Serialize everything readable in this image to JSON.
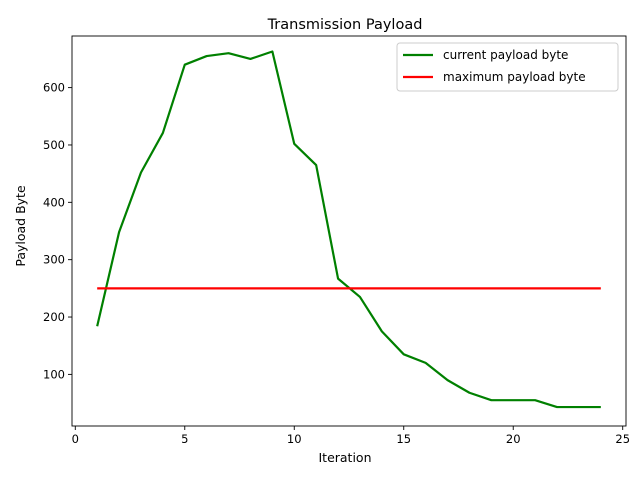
{
  "chart_data": {
    "type": "line",
    "title": "Transmission Payload",
    "xlabel": "Iteration",
    "ylabel": "Payload Byte",
    "xlim": [
      -0.15,
      25.15
    ],
    "ylim": [
      10,
      690
    ],
    "xticks": [
      0,
      5,
      10,
      15,
      20,
      25
    ],
    "yticks": [
      100,
      200,
      300,
      400,
      500,
      600
    ],
    "grid": false,
    "legend_position": "top-right",
    "series": [
      {
        "name": "current payload byte",
        "color": "#008000",
        "x": [
          1,
          2,
          3,
          4,
          5,
          6,
          7,
          8,
          9,
          10,
          11,
          12,
          13,
          14,
          15,
          16,
          17,
          18,
          19,
          20,
          21,
          22,
          23,
          24
        ],
        "y": [
          184,
          348,
          452,
          521,
          640,
          655,
          660,
          650,
          663,
          502,
          465,
          267,
          235,
          175,
          135,
          120,
          90,
          68,
          55,
          55,
          55,
          43,
          43,
          43
        ]
      },
      {
        "name": "maximum payload byte",
        "color": "#ff0000",
        "x": [
          1,
          2,
          3,
          4,
          5,
          6,
          7,
          8,
          9,
          10,
          11,
          12,
          13,
          14,
          15,
          16,
          17,
          18,
          19,
          20,
          21,
          22,
          23,
          24
        ],
        "y": [
          250,
          250,
          250,
          250,
          250,
          250,
          250,
          250,
          250,
          250,
          250,
          250,
          250,
          250,
          250,
          250,
          250,
          250,
          250,
          250,
          250,
          250,
          250,
          250
        ]
      }
    ]
  }
}
